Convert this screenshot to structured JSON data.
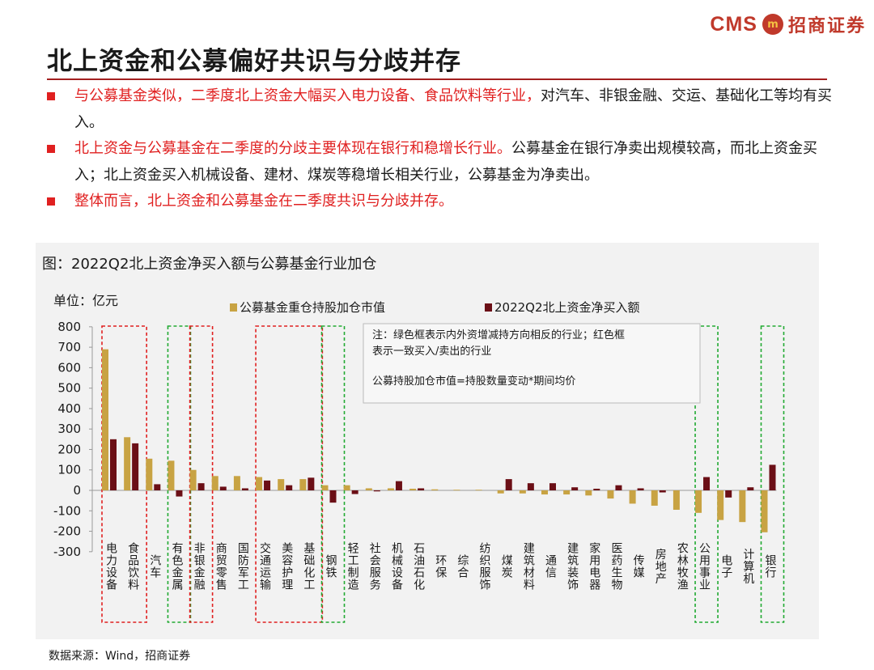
{
  "header": {
    "logo_text": "CMS",
    "logo_mark": "m",
    "logo_cn": "招商证券",
    "title": "北上资金和公募偏好共识与分歧并存"
  },
  "bullets": [
    {
      "red": "与公募基金类似，二季度北上资金大幅买入电力设备、食品饮料等行业，",
      "black": "对汽车、非银金融、交运、基础化工等均有买入。"
    },
    {
      "red": "北上资金与公募基金在二季度的分歧主要体现在银行和稳增长行业。",
      "black": "公募基金在银行净卖出规模较高，而北上资金买入；北上资金买入机械设备、建材、煤炭等稳增长相关行业，公募基金为净卖出。"
    },
    {
      "red": "整体而言，北上资金和公募基金在二季度共识与分歧并存。",
      "black": ""
    }
  ],
  "figure": {
    "title": "图：2022Q2北上资金净买入额与公募基金行业加仓",
    "source": "数据来源：Wind，招商证券"
  },
  "chart_data": {
    "type": "bar",
    "unit_label": "单位：亿元",
    "ylim": [
      -300,
      800
    ],
    "yticks": [
      "800",
      "700",
      "600",
      "500",
      "400",
      "300",
      "200",
      "100",
      "0",
      "-100",
      "-200",
      "-300"
    ],
    "grid": false,
    "legend_position": "top",
    "categories": [
      "电力设备",
      "食品饮料",
      "汽车",
      "有色金属",
      "非银金融",
      "商贸零售",
      "国防军工",
      "交通运输",
      "美容护理",
      "基础化工",
      "钢铁",
      "轻工制造",
      "社会服务",
      "机械设备",
      "石油石化",
      "环保",
      "综合",
      "纺织服饰",
      "煤炭",
      "建筑材料",
      "通信",
      "建筑装饰",
      "家用电器",
      "医药生物",
      "传媒",
      "房地产",
      "农林牧渔",
      "公用事业",
      "电子",
      "计算机",
      "银行"
    ],
    "series": [
      {
        "name": "公募基金重仓持股加仓市值",
        "color": "#c8a343",
        "values": [
          690,
          260,
          155,
          145,
          100,
          70,
          70,
          65,
          55,
          55,
          25,
          25,
          10,
          10,
          8,
          5,
          3,
          3,
          -15,
          -15,
          -20,
          -20,
          -25,
          -40,
          -65,
          -75,
          -95,
          -110,
          -145,
          -155,
          -205
        ]
      },
      {
        "name": "2022Q2北上资金净买入额",
        "color": "#6b0f16",
        "values": [
          250,
          230,
          30,
          -30,
          35,
          18,
          10,
          48,
          25,
          62,
          -60,
          -18,
          -5,
          45,
          10,
          0,
          0,
          0,
          55,
          35,
          35,
          15,
          8,
          25,
          10,
          -10,
          0,
          65,
          -35,
          15,
          125
        ]
      }
    ],
    "note_lines": [
      "注：绿色框表示内外资增减持方向相反的行业；红色框",
      "表示一致买入/卖出的行业",
      "公募持股加仓市值=持股数量变动*期间均价"
    ],
    "highlight_groups": [
      {
        "color": "red",
        "categories": [
          "电力设备",
          "食品饮料"
        ]
      },
      {
        "color": "green",
        "categories": [
          "有色金属"
        ]
      },
      {
        "color": "red",
        "categories": [
          "非银金融"
        ]
      },
      {
        "color": "red",
        "categories": [
          "交通运输",
          "美容护理",
          "基础化工"
        ]
      },
      {
        "color": "green",
        "categories": [
          "钢铁"
        ]
      },
      {
        "color": "green",
        "categories": [
          "公用事业"
        ]
      },
      {
        "color": "green",
        "categories": [
          "银行"
        ]
      }
    ],
    "colors": {
      "red_box": "#e02020",
      "green_box": "#22aa33"
    }
  }
}
